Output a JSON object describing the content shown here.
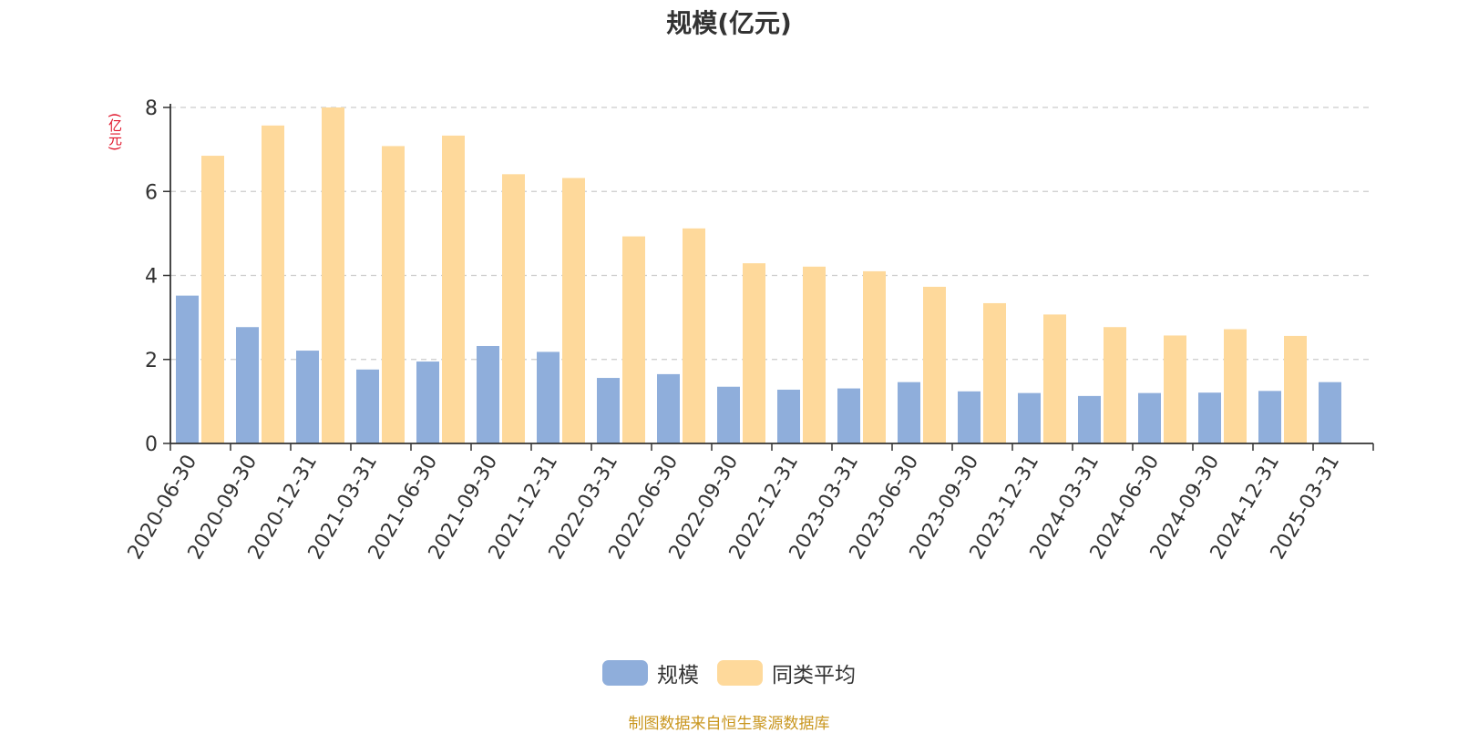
{
  "colors": {
    "series_a": "#8faedb",
    "series_b": "#fed99b",
    "unit_text": "#e0142a",
    "footer_text": "#c9961f",
    "axis": "#333333",
    "grid": "#cccccc"
  },
  "y_unit_label": "(亿元)",
  "footer": "制图数据来自恒生聚源数据库",
  "chart_data": {
    "type": "bar",
    "title": "规模(亿元)",
    "xlabel": "",
    "ylabel": "(亿元)",
    "ylim": [
      0,
      8
    ],
    "yticks": [
      0,
      2,
      4,
      6,
      8
    ],
    "grid": true,
    "legend_position": "bottom-center",
    "categories": [
      "2020-06-30",
      "2020-09-30",
      "2020-12-31",
      "2021-03-31",
      "2021-06-30",
      "2021-09-30",
      "2021-12-31",
      "2022-03-31",
      "2022-06-30",
      "2022-09-30",
      "2022-12-31",
      "2023-03-31",
      "2023-06-30",
      "2023-09-30",
      "2023-12-31",
      "2024-03-31",
      "2024-06-30",
      "2024-09-30",
      "2024-12-31",
      "2025-03-31"
    ],
    "series": [
      {
        "name": "规模",
        "values": [
          3.52,
          2.77,
          2.21,
          1.76,
          1.95,
          2.32,
          2.18,
          1.56,
          1.65,
          1.35,
          1.28,
          1.31,
          1.46,
          1.24,
          1.2,
          1.13,
          1.2,
          1.21,
          1.25,
          1.46
        ]
      },
      {
        "name": "同类平均",
        "values": [
          6.85,
          7.57,
          8.0,
          7.08,
          7.33,
          6.41,
          6.32,
          4.93,
          5.12,
          4.29,
          4.21,
          4.1,
          3.73,
          3.34,
          3.07,
          2.77,
          2.57,
          2.72,
          2.56,
          null
        ]
      }
    ]
  }
}
